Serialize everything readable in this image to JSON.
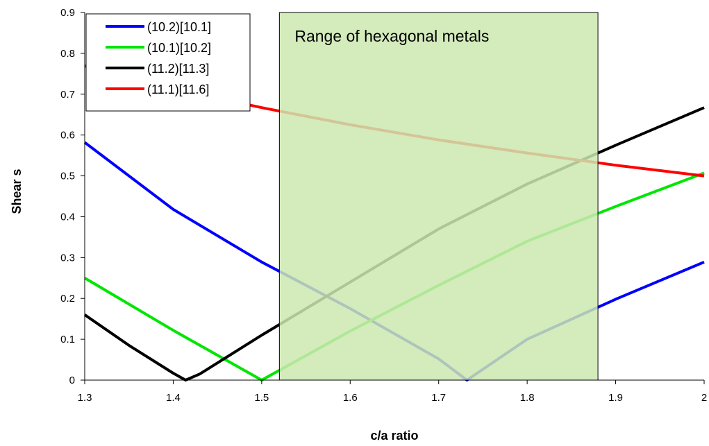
{
  "chart_data": {
    "type": "line",
    "title": "",
    "xlabel": "c/a ratio",
    "ylabel": "Shear s",
    "xlim": [
      1.3,
      2.0
    ],
    "ylim": [
      0,
      0.9
    ],
    "x_ticks": [
      "1.3",
      "1.4",
      "1.5",
      "1.6",
      "1.7",
      "1.8",
      "1.9",
      "2"
    ],
    "y_ticks": [
      "0",
      "0.1",
      "0.2",
      "0.3",
      "0.4",
      "0.5",
      "0.6",
      "0.7",
      "0.8",
      "0.9"
    ],
    "grid": false,
    "legend_position": "top-left",
    "shaded_region": {
      "label": "Range of hexagonal metals",
      "x_range": [
        1.52,
        1.88
      ],
      "color": "#cde8b0"
    },
    "series": [
      {
        "name": "(10.2)[10.1]",
        "color": "#0000ff",
        "points": [
          [
            1.3,
            0.582
          ],
          [
            1.4,
            0.418
          ],
          [
            1.5,
            0.289
          ],
          [
            1.6,
            0.175
          ],
          [
            1.7,
            0.052
          ],
          [
            1.732,
            0.0
          ],
          [
            1.8,
            0.1
          ],
          [
            1.9,
            0.198
          ],
          [
            2.0,
            0.289
          ]
        ]
      },
      {
        "name": "(10.1)[10.2]",
        "color": "#00e600",
        "points": [
          [
            1.3,
            0.25
          ],
          [
            1.4,
            0.122
          ],
          [
            1.5,
            0.0
          ],
          [
            1.6,
            0.12
          ],
          [
            1.7,
            0.232
          ],
          [
            1.8,
            0.34
          ],
          [
            1.9,
            0.425
          ],
          [
            2.0,
            0.507
          ]
        ]
      },
      {
        "name": "(11.2)[11.3]",
        "color": "#000000",
        "points": [
          [
            1.3,
            0.16
          ],
          [
            1.35,
            0.085
          ],
          [
            1.4,
            0.017
          ],
          [
            1.414,
            0.0
          ],
          [
            1.43,
            0.015
          ],
          [
            1.5,
            0.11
          ],
          [
            1.6,
            0.24
          ],
          [
            1.7,
            0.37
          ],
          [
            1.8,
            0.48
          ],
          [
            1.9,
            0.575
          ],
          [
            2.0,
            0.667
          ]
        ]
      },
      {
        "name": "(11.1)[11.6]",
        "color": "#ff0000",
        "points": [
          [
            1.3,
            0.769
          ],
          [
            1.4,
            0.714
          ],
          [
            1.5,
            0.667
          ],
          [
            1.6,
            0.625
          ],
          [
            1.7,
            0.588
          ],
          [
            1.8,
            0.556
          ],
          [
            1.9,
            0.526
          ],
          [
            2.0,
            0.5
          ]
        ]
      }
    ]
  }
}
